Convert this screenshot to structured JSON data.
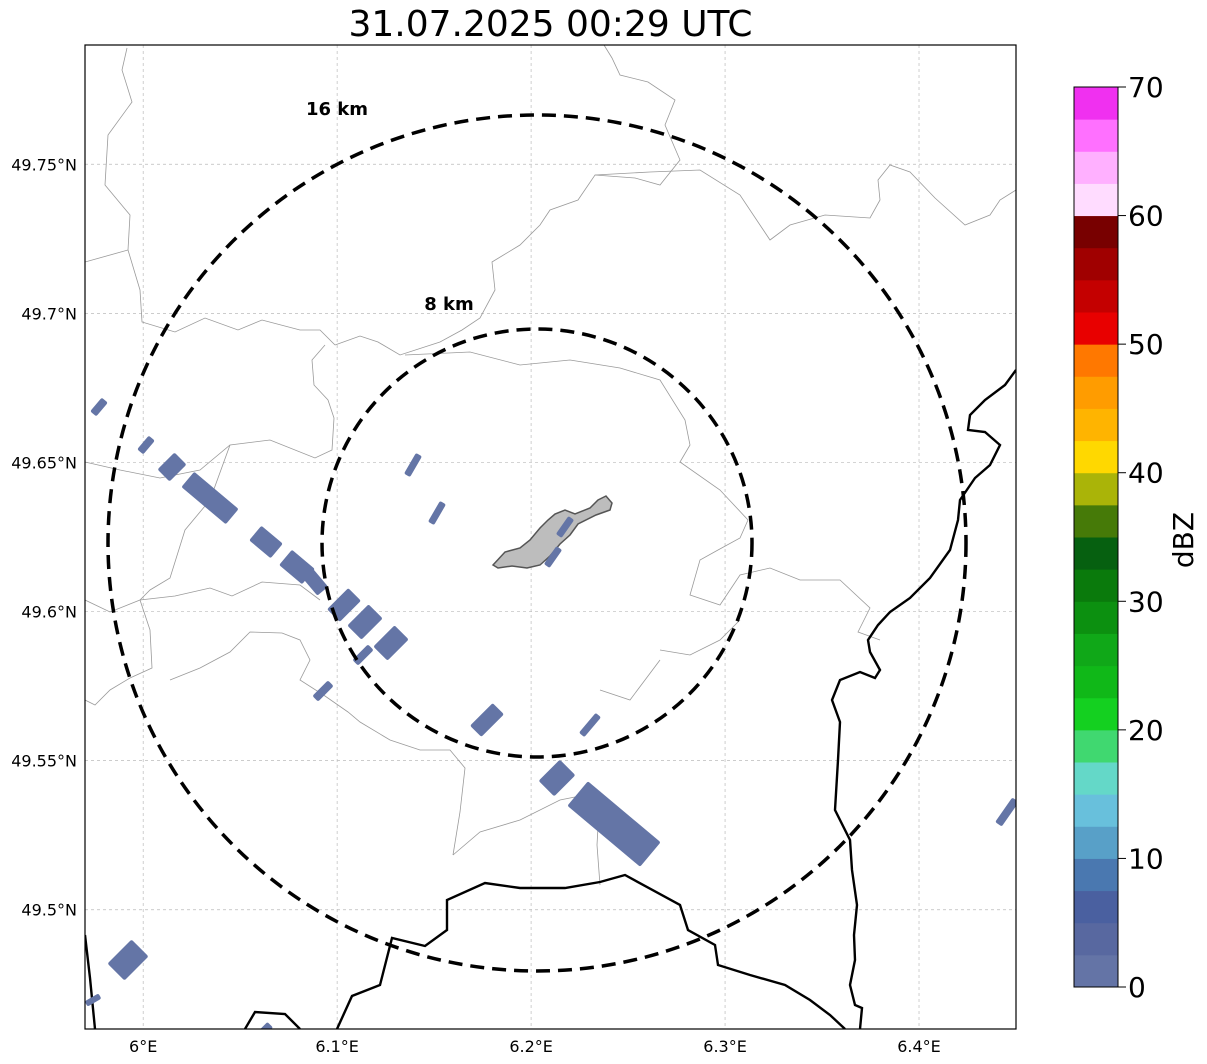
{
  "title": "31.07.2025 00:29 UTC",
  "map": {
    "lon_range": [
      5.97,
      6.45
    ],
    "lat_range": [
      49.46,
      49.79
    ],
    "gridlines": true,
    "lat_ticks": [
      {
        "value": 49.5,
        "label": "49.5°N"
      },
      {
        "value": 49.55,
        "label": "49.55°N"
      },
      {
        "value": 49.6,
        "label": "49.6°N"
      },
      {
        "value": 49.65,
        "label": "49.65°N"
      },
      {
        "value": 49.7,
        "label": "49.7°N"
      },
      {
        "value": 49.75,
        "label": "49.75°N"
      }
    ],
    "lon_ticks": [
      {
        "value": 6.0,
        "label": "6°E"
      },
      {
        "value": 6.1,
        "label": "6.1°E"
      },
      {
        "value": 6.2,
        "label": "6.2°E"
      },
      {
        "value": 6.3,
        "label": "6.3°E"
      },
      {
        "value": 6.4,
        "label": "6.4°E"
      }
    ],
    "range_rings": [
      {
        "label": "8 km",
        "radius_km": 8
      },
      {
        "label": "16 km",
        "radius_km": 16
      }
    ]
  },
  "colorbar": {
    "label": "dBZ",
    "min": 0,
    "max": 70,
    "ticks": [
      "0",
      "10",
      "20",
      "30",
      "40",
      "50",
      "60",
      "70"
    ],
    "colors": [
      "#6474a6",
      "#5868a0",
      "#4a60a0",
      "#4a78b0",
      "#58a0c8",
      "#68c0dc",
      "#64d8c8",
      "#40d870",
      "#14d020",
      "#10b818",
      "#10a818",
      "#0c9010",
      "#0a7a0c",
      "#066010",
      "#467a08",
      "#aab408",
      "#ffd800",
      "#ffb400",
      "#ff9c00",
      "#ff7800",
      "#e80000",
      "#c40000",
      "#a00000",
      "#780000",
      "#ffdcff",
      "#ffb0ff",
      "#ff70ff",
      "#f030f0"
    ]
  },
  "colors": {
    "echo": "#6475a6",
    "city": "#bdbdbd",
    "ring": "#000000",
    "border": "#000000",
    "admin": "#9a9a9a"
  }
}
